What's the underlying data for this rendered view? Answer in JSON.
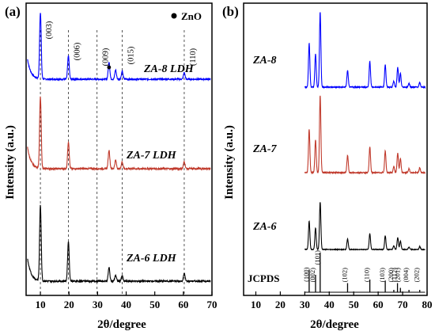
{
  "chart_data": [
    {
      "type": "line",
      "panel_label": "(a)",
      "xlabel": "2θ/degree",
      "ylabel": "Intensity (a.u.)",
      "xlim": [
        5,
        70
      ],
      "xticks": [
        10,
        20,
        30,
        40,
        50,
        60,
        70
      ],
      "legend": {
        "label": "ZnO",
        "placement": "top-right",
        "marker": "filled-circle"
      },
      "series": [
        {
          "name": "ZA-8 LDH",
          "color": "#0000ff",
          "peaks": [
            {
              "x": 10.0,
              "h": 1.0
            },
            {
              "x": 19.8,
              "h": 0.35
            },
            {
              "x": 34.0,
              "h": 0.26
            },
            {
              "x": 36.3,
              "h": 0.14
            },
            {
              "x": 38.6,
              "h": 0.12
            },
            {
              "x": 60.3,
              "h": 0.1
            }
          ]
        },
        {
          "name": "ZA-7 LDH",
          "color": "#c0392b",
          "peaks": [
            {
              "x": 10.0,
              "h": 1.0
            },
            {
              "x": 19.8,
              "h": 0.38
            },
            {
              "x": 34.0,
              "h": 0.26
            },
            {
              "x": 36.3,
              "h": 0.12
            },
            {
              "x": 38.6,
              "h": 0.1
            },
            {
              "x": 60.3,
              "h": 0.1
            }
          ]
        },
        {
          "name": "ZA-6 LDH",
          "color": "#000000",
          "peaks": [
            {
              "x": 10.0,
              "h": 1.0
            },
            {
              "x": 19.8,
              "h": 0.53
            },
            {
              "x": 34.0,
              "h": 0.18
            },
            {
              "x": 36.3,
              "h": 0.08
            },
            {
              "x": 38.6,
              "h": 0.07
            },
            {
              "x": 60.3,
              "h": 0.1
            }
          ]
        }
      ],
      "annotations": [
        {
          "text": "(003)",
          "x": 10.0
        },
        {
          "text": "(006)",
          "x": 19.8
        },
        {
          "text": "(009)",
          "x": 29.8
        },
        {
          "text": "•",
          "x": 34.0
        },
        {
          "text": "(015)",
          "x": 38.6
        },
        {
          "text": "(110)",
          "x": 60.3
        }
      ],
      "reference_lines_x": [
        10.0,
        19.8,
        29.8,
        38.6,
        60.3
      ]
    },
    {
      "type": "line",
      "panel_label": "(b)",
      "xlabel": "2θ/degree",
      "ylabel": "Intensity (a.u.)",
      "xlim": [
        5,
        80
      ],
      "xticks": [
        10,
        20,
        30,
        40,
        50,
        60,
        70,
        80
      ],
      "series": [
        {
          "name": "ZA-8",
          "color": "#0000ff",
          "peaks": [
            {
              "x": 31.8,
              "h": 0.58
            },
            {
              "x": 34.4,
              "h": 0.44
            },
            {
              "x": 36.3,
              "h": 1.0
            },
            {
              "x": 47.5,
              "h": 0.22
            },
            {
              "x": 56.6,
              "h": 0.34
            },
            {
              "x": 62.9,
              "h": 0.3
            },
            {
              "x": 66.4,
              "h": 0.08
            },
            {
              "x": 68.0,
              "h": 0.26
            },
            {
              "x": 69.1,
              "h": 0.18
            },
            {
              "x": 72.6,
              "h": 0.05
            },
            {
              "x": 77.0,
              "h": 0.06
            }
          ]
        },
        {
          "name": "ZA-7",
          "color": "#c0392b",
          "peaks": [
            {
              "x": 31.8,
              "h": 0.56
            },
            {
              "x": 34.4,
              "h": 0.42
            },
            {
              "x": 36.3,
              "h": 1.0
            },
            {
              "x": 47.5,
              "h": 0.22
            },
            {
              "x": 56.6,
              "h": 0.33
            },
            {
              "x": 62.9,
              "h": 0.28
            },
            {
              "x": 66.4,
              "h": 0.08
            },
            {
              "x": 68.0,
              "h": 0.25
            },
            {
              "x": 69.1,
              "h": 0.18
            },
            {
              "x": 72.6,
              "h": 0.05
            },
            {
              "x": 77.0,
              "h": 0.06
            }
          ]
        },
        {
          "name": "ZA-6",
          "color": "#000000",
          "peaks": [
            {
              "x": 31.8,
              "h": 0.6
            },
            {
              "x": 34.4,
              "h": 0.45
            },
            {
              "x": 36.3,
              "h": 1.0
            },
            {
              "x": 47.5,
              "h": 0.22
            },
            {
              "x": 56.6,
              "h": 0.33
            },
            {
              "x": 62.9,
              "h": 0.29
            },
            {
              "x": 66.4,
              "h": 0.08
            },
            {
              "x": 68.0,
              "h": 0.25
            },
            {
              "x": 69.1,
              "h": 0.18
            },
            {
              "x": 72.6,
              "h": 0.05
            },
            {
              "x": 77.0,
              "h": 0.06
            }
          ]
        }
      ],
      "reference": {
        "name": "JCPDS",
        "sticks": [
          {
            "x": 31.8,
            "h": 0.57,
            "label": "(100)"
          },
          {
            "x": 34.4,
            "h": 0.44,
            "label": "(002)"
          },
          {
            "x": 36.3,
            "h": 1.0,
            "label": "(101)"
          },
          {
            "x": 47.5,
            "h": 0.23,
            "label": "(102)"
          },
          {
            "x": 56.6,
            "h": 0.32,
            "label": "(110)"
          },
          {
            "x": 62.9,
            "h": 0.29,
            "label": "(103)"
          },
          {
            "x": 66.4,
            "h": 0.04,
            "label": "(200)"
          },
          {
            "x": 67.9,
            "h": 0.23,
            "label": "(112)"
          },
          {
            "x": 69.1,
            "h": 0.11,
            "label": "(201)"
          },
          {
            "x": 72.6,
            "h": 0.02,
            "label": "(004)"
          },
          {
            "x": 77.0,
            "h": 0.04,
            "label": "(202)"
          }
        ]
      }
    }
  ]
}
